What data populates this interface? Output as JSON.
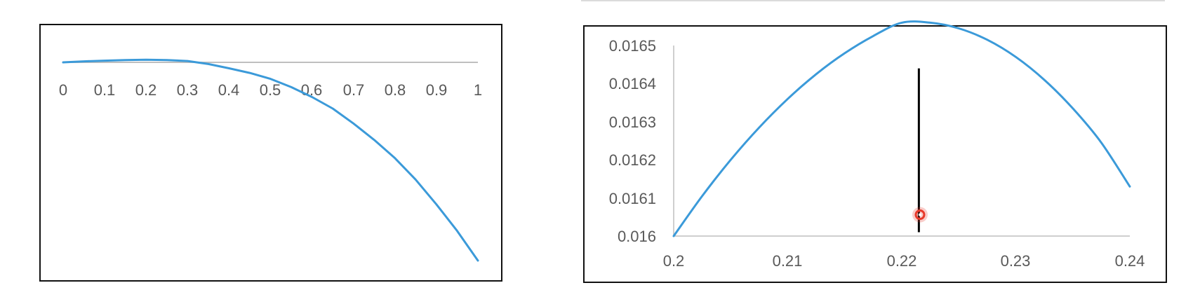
{
  "chart_data": [
    {
      "type": "line",
      "xlim": [
        0,
        1
      ],
      "x_ticks": [
        "0",
        "0.1",
        "0.2",
        "0.3",
        "0.4",
        "0.5",
        "0.6",
        "0.7",
        "0.8",
        "0.9",
        "1"
      ],
      "y_axis_labels": "hidden",
      "gridlines": false,
      "legend": "none",
      "series": [
        {
          "color": "#3b9ad9",
          "x": [
            0,
            0.05,
            0.1,
            0.15,
            0.2,
            0.25,
            0.3,
            0.35,
            0.4,
            0.45,
            0.5,
            0.55,
            0.6,
            0.65,
            0.7,
            0.75,
            0.8,
            0.85,
            0.9,
            0.95,
            1.0
          ],
          "y": [
            0,
            0.003,
            0.005,
            0.007,
            0.008,
            0.007,
            0.004,
            -0.005,
            -0.018,
            -0.032,
            -0.05,
            -0.075,
            -0.105,
            -0.14,
            -0.185,
            -0.235,
            -0.29,
            -0.355,
            -0.43,
            -0.51,
            -0.6
          ]
        }
      ]
    },
    {
      "type": "line",
      "xlim": [
        0.2,
        0.24
      ],
      "ylim": [
        0.016,
        0.0165
      ],
      "x_ticks": [
        "0.2",
        "0.21",
        "0.22",
        "0.23",
        "0.24"
      ],
      "y_ticks": [
        "0.016",
        "0.0161",
        "0.0162",
        "0.0163",
        "0.0164",
        "0.0165"
      ],
      "gridlines": false,
      "legend": "none",
      "series": [
        {
          "color": "#3b9ad9",
          "x": [
            0.2,
            0.2025,
            0.205,
            0.2075,
            0.21,
            0.2125,
            0.215,
            0.2175,
            0.22,
            0.2225,
            0.225,
            0.2275,
            0.23,
            0.2325,
            0.235,
            0.2375,
            0.24
          ],
          "y": [
            0.016,
            0.016105,
            0.0162,
            0.016285,
            0.01636,
            0.016425,
            0.01648,
            0.016525,
            0.01656,
            0.01656,
            0.016545,
            0.016515,
            0.01647,
            0.01641,
            0.016335,
            0.016245,
            0.01613
          ]
        }
      ],
      "annotations": [
        {
          "type": "vertical-line",
          "color": "#000000",
          "x": 0.2215,
          "y_from": 0.01601,
          "y_to": 0.01644
        },
        {
          "type": "cursor-marker",
          "color": "#e8392a",
          "x": 0.2216,
          "y": 0.016056
        }
      ]
    }
  ]
}
